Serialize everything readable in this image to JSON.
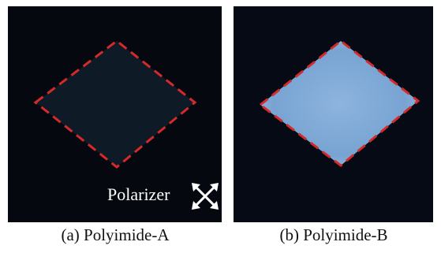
{
  "panels": [
    {
      "caption": "(a) Polyimide-A",
      "annotation": "Polarizer"
    },
    {
      "caption": "(b) Polyimide-B"
    }
  ]
}
